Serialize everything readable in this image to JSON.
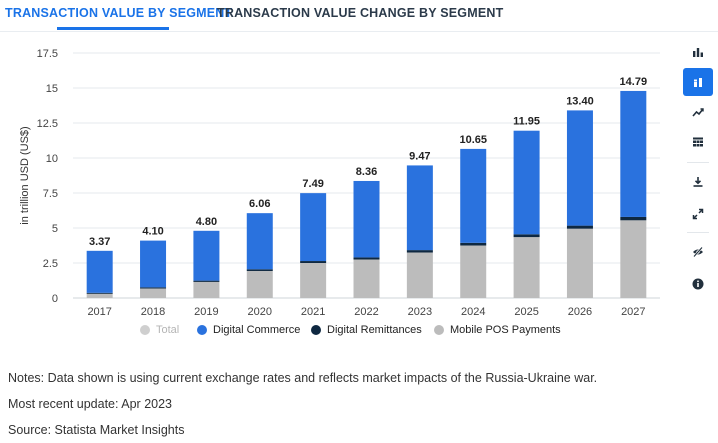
{
  "tabs": [
    {
      "label": "TRANSACTION VALUE BY SEGMENT",
      "active": true
    },
    {
      "label": "TRANSACTION VALUE CHANGE BY SEGMENT",
      "active": false
    }
  ],
  "toolbar": {
    "buttons": [
      {
        "icon": "bar-chart-icon",
        "active": false
      },
      {
        "icon": "stacked-bar-chart-icon",
        "active": true
      },
      {
        "icon": "trend-line-icon",
        "active": false
      },
      {
        "icon": "table-grid-icon",
        "active": false
      },
      {
        "icon": "download-icon",
        "active": false
      },
      {
        "icon": "fullscreen-icon",
        "active": false
      },
      {
        "icon": "hide-eye-icon",
        "active": false
      },
      {
        "icon": "info-icon",
        "active": false
      }
    ]
  },
  "colors": {
    "accent": "#1a73e8",
    "digital_commerce": "#2a72de",
    "digital_remittances": "#0e2841",
    "mobile_pos": "#bcbcbc",
    "total_muted": "#cfcfcf"
  },
  "legend": [
    {
      "label": "Total",
      "color": "#cfcfcf",
      "muted": true
    },
    {
      "label": "Digital Commerce",
      "color": "#2a72de",
      "muted": false
    },
    {
      "label": "Digital Remittances",
      "color": "#0e2841",
      "muted": false
    },
    {
      "label": "Mobile POS Payments",
      "color": "#bcbcbc",
      "muted": false
    }
  ],
  "chart_data": {
    "type": "bar",
    "stacked": true,
    "ylabel": "in trillion USD (US$)",
    "ylim": [
      0,
      17.5
    ],
    "yticks": [
      "0",
      "2.5",
      "5",
      "7.5",
      "10",
      "12.5",
      "15",
      "17.5"
    ],
    "categories": [
      "2017",
      "2018",
      "2019",
      "2020",
      "2021",
      "2022",
      "2023",
      "2024",
      "2025",
      "2026",
      "2027"
    ],
    "totals": [
      "3.37",
      "4.10",
      "4.80",
      "6.06",
      "7.49",
      "8.36",
      "9.47",
      "10.65",
      "11.95",
      "13.40",
      "14.79"
    ],
    "series": [
      {
        "name": "Mobile POS Payments",
        "values": [
          0.3,
          0.68,
          1.15,
          1.93,
          2.5,
          2.75,
          3.25,
          3.75,
          4.35,
          4.95,
          5.55
        ]
      },
      {
        "name": "Digital Remittances",
        "values": [
          0.07,
          0.08,
          0.09,
          0.12,
          0.14,
          0.15,
          0.17,
          0.19,
          0.2,
          0.22,
          0.24
        ]
      },
      {
        "name": "Digital Commerce",
        "values": [
          3.0,
          3.34,
          3.56,
          4.01,
          4.85,
          5.46,
          6.05,
          6.71,
          7.4,
          8.23,
          9.0
        ]
      }
    ],
    "grid": true,
    "legend_position": "bottom"
  },
  "notes": [
    "Notes: Data shown is using current exchange rates and reflects market impacts of the Russia-Ukraine war.",
    "Most recent update: Apr 2023",
    "Source: Statista Market Insights"
  ]
}
